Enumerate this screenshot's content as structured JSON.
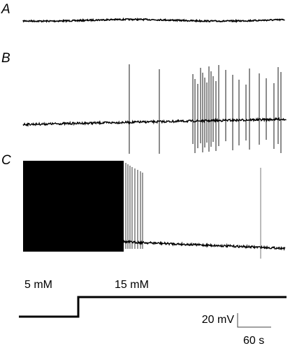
{
  "panels": {
    "a": "A",
    "b": "B",
    "c": "C"
  },
  "protocol": {
    "low": "5 mM",
    "high": "15 mM"
  },
  "scale_bar": {
    "voltage": "20 mV",
    "time": "60 s"
  }
}
